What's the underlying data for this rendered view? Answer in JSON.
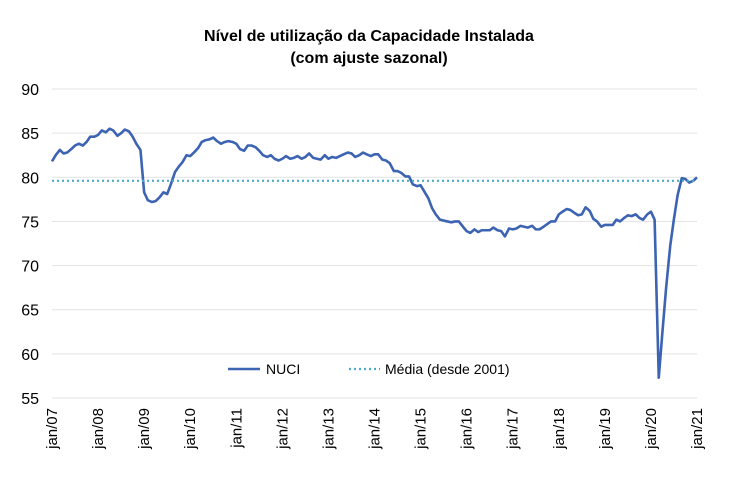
{
  "chart_data": {
    "type": "line",
    "title": "Nível de utilização da Capacidade Instalada",
    "subtitle": "(com ajuste sazonal)",
    "xlabel": "",
    "ylabel": "",
    "ylim": [
      55,
      90
    ],
    "yticks": [
      55,
      60,
      65,
      70,
      75,
      80,
      85,
      90
    ],
    "xticks": [
      "jan/07",
      "jan/08",
      "jan/09",
      "jan/10",
      "jan/11",
      "jan/12",
      "jan/13",
      "jan/14",
      "jan/15",
      "jan/16",
      "jan/17",
      "jan/18",
      "jan/19",
      "jan/20",
      "jan/21"
    ],
    "grid": "horizontal",
    "legend_position": "bottom-center",
    "series": [
      {
        "name": "NUCI",
        "color": "#3d63b3",
        "style": "solid",
        "points": [
          [
            2007.0,
            81.8
          ],
          [
            2007.08,
            82.5
          ],
          [
            2007.17,
            83.1
          ],
          [
            2007.25,
            82.7
          ],
          [
            2007.33,
            82.8
          ],
          [
            2007.42,
            83.2
          ],
          [
            2007.5,
            83.6
          ],
          [
            2007.58,
            83.8
          ],
          [
            2007.67,
            83.6
          ],
          [
            2007.75,
            84.0
          ],
          [
            2007.83,
            84.6
          ],
          [
            2007.92,
            84.6
          ],
          [
            2008.0,
            84.8
          ],
          [
            2008.08,
            85.3
          ],
          [
            2008.17,
            85.1
          ],
          [
            2008.25,
            85.5
          ],
          [
            2008.33,
            85.3
          ],
          [
            2008.42,
            84.7
          ],
          [
            2008.5,
            85.0
          ],
          [
            2008.58,
            85.4
          ],
          [
            2008.67,
            85.2
          ],
          [
            2008.75,
            84.6
          ],
          [
            2008.83,
            83.8
          ],
          [
            2008.92,
            83.1
          ],
          [
            2009.0,
            78.3
          ],
          [
            2009.08,
            77.4
          ],
          [
            2009.17,
            77.2
          ],
          [
            2009.25,
            77.3
          ],
          [
            2009.33,
            77.7
          ],
          [
            2009.42,
            78.3
          ],
          [
            2009.5,
            78.1
          ],
          [
            2009.58,
            79.2
          ],
          [
            2009.67,
            80.6
          ],
          [
            2009.75,
            81.2
          ],
          [
            2009.83,
            81.7
          ],
          [
            2009.92,
            82.5
          ],
          [
            2010.0,
            82.4
          ],
          [
            2010.08,
            82.8
          ],
          [
            2010.17,
            83.3
          ],
          [
            2010.25,
            84.0
          ],
          [
            2010.33,
            84.2
          ],
          [
            2010.42,
            84.3
          ],
          [
            2010.5,
            84.5
          ],
          [
            2010.58,
            84.1
          ],
          [
            2010.67,
            83.8
          ],
          [
            2010.75,
            84.0
          ],
          [
            2010.83,
            84.1
          ],
          [
            2010.92,
            84.0
          ],
          [
            2011.0,
            83.8
          ],
          [
            2011.08,
            83.2
          ],
          [
            2011.17,
            83.0
          ],
          [
            2011.25,
            83.6
          ],
          [
            2011.33,
            83.6
          ],
          [
            2011.42,
            83.4
          ],
          [
            2011.5,
            83.0
          ],
          [
            2011.58,
            82.5
          ],
          [
            2011.67,
            82.3
          ],
          [
            2011.75,
            82.5
          ],
          [
            2011.83,
            82.1
          ],
          [
            2011.92,
            81.9
          ],
          [
            2012.0,
            82.1
          ],
          [
            2012.08,
            82.4
          ],
          [
            2012.17,
            82.1
          ],
          [
            2012.25,
            82.2
          ],
          [
            2012.33,
            82.4
          ],
          [
            2012.42,
            82.1
          ],
          [
            2012.5,
            82.3
          ],
          [
            2012.58,
            82.7
          ],
          [
            2012.67,
            82.2
          ],
          [
            2012.75,
            82.1
          ],
          [
            2012.83,
            82.0
          ],
          [
            2012.92,
            82.5
          ],
          [
            2013.0,
            82.1
          ],
          [
            2013.08,
            82.3
          ],
          [
            2013.17,
            82.2
          ],
          [
            2013.25,
            82.4
          ],
          [
            2013.33,
            82.6
          ],
          [
            2013.42,
            82.8
          ],
          [
            2013.5,
            82.7
          ],
          [
            2013.58,
            82.3
          ],
          [
            2013.67,
            82.5
          ],
          [
            2013.75,
            82.8
          ],
          [
            2013.83,
            82.6
          ],
          [
            2013.92,
            82.4
          ],
          [
            2014.0,
            82.6
          ],
          [
            2014.08,
            82.6
          ],
          [
            2014.17,
            82.0
          ],
          [
            2014.25,
            81.9
          ],
          [
            2014.33,
            81.6
          ],
          [
            2014.42,
            80.7
          ],
          [
            2014.5,
            80.7
          ],
          [
            2014.58,
            80.5
          ],
          [
            2014.67,
            80.1
          ],
          [
            2014.75,
            80.1
          ],
          [
            2014.83,
            79.2
          ],
          [
            2014.92,
            79.0
          ],
          [
            2015.0,
            79.1
          ],
          [
            2015.08,
            78.4
          ],
          [
            2015.17,
            77.6
          ],
          [
            2015.25,
            76.5
          ],
          [
            2015.33,
            75.8
          ],
          [
            2015.42,
            75.2
          ],
          [
            2015.5,
            75.1
          ],
          [
            2015.58,
            75.0
          ],
          [
            2015.67,
            74.9
          ],
          [
            2015.75,
            75.0
          ],
          [
            2015.83,
            75.0
          ],
          [
            2015.92,
            74.4
          ],
          [
            2016.0,
            73.9
          ],
          [
            2016.08,
            73.7
          ],
          [
            2016.17,
            74.1
          ],
          [
            2016.25,
            73.8
          ],
          [
            2016.33,
            74.0
          ],
          [
            2016.42,
            74.0
          ],
          [
            2016.5,
            74.0
          ],
          [
            2016.58,
            74.3
          ],
          [
            2016.67,
            74.0
          ],
          [
            2016.75,
            73.9
          ],
          [
            2016.83,
            73.3
          ],
          [
            2016.92,
            74.2
          ],
          [
            2017.0,
            74.1
          ],
          [
            2017.08,
            74.2
          ],
          [
            2017.17,
            74.5
          ],
          [
            2017.25,
            74.4
          ],
          [
            2017.33,
            74.3
          ],
          [
            2017.42,
            74.5
          ],
          [
            2017.5,
            74.1
          ],
          [
            2017.58,
            74.1
          ],
          [
            2017.67,
            74.4
          ],
          [
            2017.75,
            74.7
          ],
          [
            2017.83,
            75.0
          ],
          [
            2017.92,
            75.0
          ],
          [
            2018.0,
            75.8
          ],
          [
            2018.08,
            76.1
          ],
          [
            2018.17,
            76.4
          ],
          [
            2018.25,
            76.3
          ],
          [
            2018.33,
            76.0
          ],
          [
            2018.42,
            75.7
          ],
          [
            2018.5,
            75.8
          ],
          [
            2018.58,
            76.6
          ],
          [
            2018.67,
            76.2
          ],
          [
            2018.75,
            75.3
          ],
          [
            2018.83,
            75.0
          ],
          [
            2018.92,
            74.4
          ],
          [
            2019.0,
            74.6
          ],
          [
            2019.08,
            74.6
          ],
          [
            2019.17,
            74.6
          ],
          [
            2019.25,
            75.2
          ],
          [
            2019.33,
            75.0
          ],
          [
            2019.42,
            75.4
          ],
          [
            2019.5,
            75.7
          ],
          [
            2019.58,
            75.6
          ],
          [
            2019.67,
            75.8
          ],
          [
            2019.75,
            75.4
          ],
          [
            2019.83,
            75.2
          ],
          [
            2019.92,
            75.8
          ],
          [
            2020.0,
            76.1
          ],
          [
            2020.08,
            75.2
          ],
          [
            2020.17,
            57.3
          ],
          [
            2020.25,
            62.5
          ],
          [
            2020.33,
            67.5
          ],
          [
            2020.42,
            72.3
          ],
          [
            2020.5,
            75.3
          ],
          [
            2020.58,
            78.0
          ],
          [
            2020.67,
            79.9
          ],
          [
            2020.75,
            79.8
          ],
          [
            2020.83,
            79.4
          ],
          [
            2020.92,
            79.6
          ],
          [
            2021.0,
            80.0
          ]
        ]
      },
      {
        "name": "Média (desde 2001)",
        "color": "#4bacc6",
        "style": "dotted",
        "points": [
          [
            2007.0,
            79.6
          ],
          [
            2021.0,
            79.6
          ]
        ]
      }
    ]
  }
}
